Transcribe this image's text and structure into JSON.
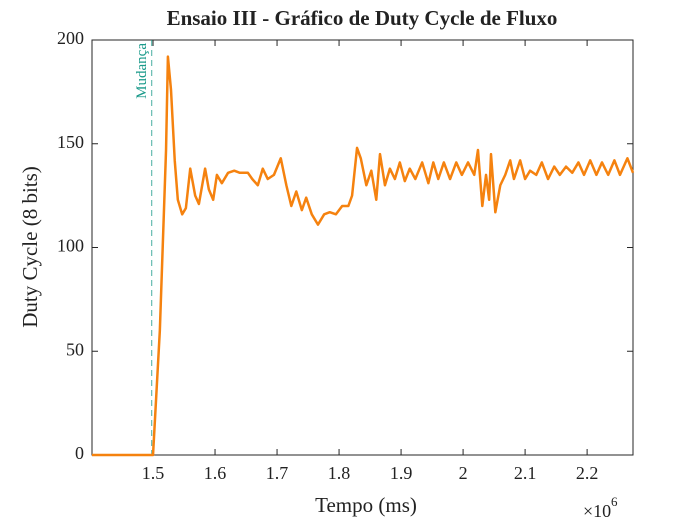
{
  "chart_data": {
    "type": "line",
    "title": "Ensaio III - Gráfico de Duty Cycle de Fluxo",
    "xlabel": "Tempo (ms)",
    "ylabel": "Duty Cycle (8 bits)",
    "x_scale_label": {
      "base": "×10",
      "exponent": "6"
    },
    "xlim": [
      1401600,
      2274000
    ],
    "ylim": [
      0,
      200
    ],
    "xticks": [
      {
        "value": 1500000,
        "label": "1.5"
      },
      {
        "value": 1600000,
        "label": "1.6"
      },
      {
        "value": 1700000,
        "label": "1.7"
      },
      {
        "value": 1800000,
        "label": "1.8"
      },
      {
        "value": 1900000,
        "label": "1.9"
      },
      {
        "value": 2000000,
        "label": "2"
      },
      {
        "value": 2100000,
        "label": "2.1"
      },
      {
        "value": 2200000,
        "label": "2.2"
      }
    ],
    "yticks": [
      0,
      50,
      100,
      150,
      200
    ],
    "annotations": [
      {
        "x": 1498000,
        "label": "Mudança",
        "color": "#1a9a8a"
      }
    ],
    "x": [
      1401600,
      1500000,
      1511000,
      1521000,
      1524000,
      1529000,
      1535000,
      1540000,
      1547000,
      1553000,
      1560000,
      1568000,
      1574000,
      1584000,
      1590000,
      1597000,
      1603000,
      1611000,
      1621000,
      1631000,
      1640000,
      1653000,
      1660000,
      1669000,
      1677000,
      1685000,
      1695000,
      1706000,
      1715000,
      1723000,
      1731000,
      1740000,
      1747000,
      1756000,
      1766000,
      1776000,
      1785000,
      1795000,
      1805000,
      1815000,
      1821000,
      1829000,
      1835000,
      1844000,
      1852000,
      1860000,
      1866000,
      1874000,
      1882000,
      1890000,
      1898000,
      1906000,
      1914000,
      1923000,
      1934000,
      1944000,
      1952000,
      1960000,
      1969000,
      1979000,
      1989000,
      1998000,
      2008000,
      2018000,
      2024000,
      2031000,
      2037000,
      2042000,
      2045000,
      2052000,
      2060000,
      2068000,
      2076000,
      2082000,
      2092000,
      2100000,
      2108000,
      2118000,
      2127000,
      2137000,
      2147000,
      2156000,
      2166000,
      2176000,
      2186000,
      2195000,
      2205000,
      2215000,
      2224000,
      2234000,
      2244000,
      2253000,
      2265000,
      2274000
    ],
    "series": [
      {
        "color": "#f5820f",
        "values": [
          0,
          0,
          60,
          147,
          192,
          176,
          142,
          123,
          116,
          119,
          138,
          125,
          121,
          138,
          128,
          123,
          135,
          131,
          136,
          137,
          136,
          136,
          133,
          130,
          138,
          133,
          135,
          143,
          130,
          120,
          127,
          118,
          124,
          116,
          111,
          116,
          117,
          116,
          120,
          120,
          125,
          148,
          143,
          130,
          137,
          123,
          145,
          130,
          138,
          133,
          141,
          132,
          138,
          133,
          141,
          131,
          141,
          133,
          141,
          133,
          141,
          135,
          141,
          135,
          147,
          120,
          135,
          123,
          145,
          117,
          130,
          135,
          142,
          133,
          142,
          133,
          137,
          135,
          141,
          133,
          139,
          135,
          139,
          136,
          141,
          135,
          142,
          135,
          141,
          135,
          142,
          135,
          143,
          136
        ]
      }
    ]
  }
}
